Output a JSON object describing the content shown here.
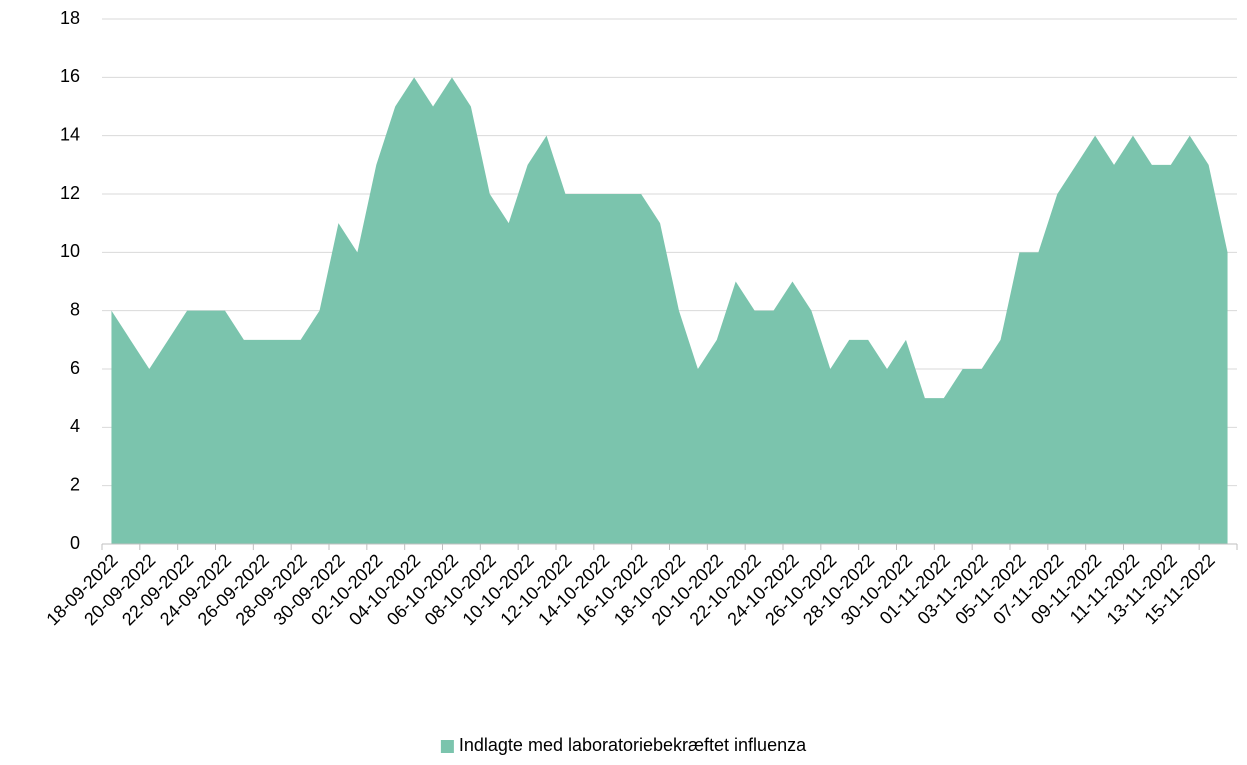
{
  "chart_data": {
    "type": "area",
    "categories": [
      "18-09-2022",
      null,
      "20-09-2022",
      null,
      "22-09-2022",
      null,
      "24-09-2022",
      null,
      "26-09-2022",
      null,
      "28-09-2022",
      null,
      "30-09-2022",
      null,
      "02-10-2022",
      null,
      "04-10-2022",
      null,
      "06-10-2022",
      null,
      "08-10-2022",
      null,
      "10-10-2022",
      null,
      "12-10-2022",
      null,
      "14-10-2022",
      null,
      "16-10-2022",
      null,
      "18-10-2022",
      null,
      "20-10-2022",
      null,
      "22-10-2022",
      null,
      "24-10-2022",
      null,
      "26-10-2022",
      null,
      "28-10-2022",
      null,
      "30-10-2022",
      null,
      "01-11-2022",
      null,
      "03-11-2022",
      null,
      "05-11-2022",
      null,
      "07-11-2022",
      null,
      "09-11-2022",
      null,
      "11-11-2022",
      null,
      "13-11-2022",
      null,
      "15-11-2022",
      null
    ],
    "series": [
      {
        "name": "Indlagte med laboratoriebekræftet influenza",
        "color": "#7bc4ad",
        "values": [
          8,
          7,
          6,
          7,
          8,
          8,
          8,
          7,
          7,
          7,
          7,
          8,
          11,
          10,
          13,
          15,
          16,
          15,
          16,
          15,
          12,
          11,
          13,
          14,
          12,
          12,
          12,
          12,
          12,
          11,
          8,
          6,
          7,
          9,
          8,
          8,
          9,
          8,
          6,
          7,
          7,
          6,
          7,
          5,
          5,
          6,
          6,
          7,
          10,
          10,
          12,
          13,
          14,
          13,
          14,
          13,
          13,
          14,
          13,
          10
        ]
      }
    ],
    "ylim": [
      0,
      18
    ],
    "yticks": [
      0,
      2,
      4,
      6,
      8,
      10,
      12,
      14,
      16,
      18
    ],
    "grid": true,
    "legend": "bottom"
  }
}
